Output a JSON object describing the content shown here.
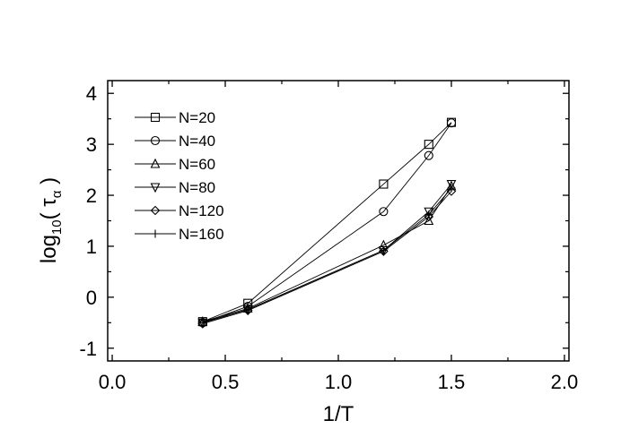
{
  "chart_data": {
    "type": "line",
    "xlabel": "1/T",
    "ylabel": {
      "main": "log",
      "sub": "10",
      "open": "( τ",
      "greek_sub": "α",
      "close": " )"
    },
    "xlim": [
      -0.02,
      2.02
    ],
    "ylim": [
      -1.25,
      4.25
    ],
    "xticks": [
      0.0,
      0.5,
      1.0,
      1.5,
      2.0
    ],
    "xtick_labels": [
      "0.0",
      "0.5",
      "1.0",
      "1.5",
      "2.0"
    ],
    "yticks": [
      -1,
      0,
      1,
      2,
      3,
      4
    ],
    "ytick_labels": [
      "-1",
      "0",
      "1",
      "2",
      "3",
      "4"
    ],
    "grid": false,
    "legend_position": "top-left",
    "series": [
      {
        "name": "N=20",
        "marker": "square",
        "x": [
          0.4,
          0.6,
          1.2,
          1.4,
          1.5
        ],
        "y": [
          -0.48,
          -0.12,
          2.22,
          3.0,
          3.43
        ]
      },
      {
        "name": "N=40",
        "marker": "circle",
        "x": [
          0.4,
          0.6,
          1.2,
          1.4,
          1.5
        ],
        "y": [
          -0.5,
          -0.18,
          1.68,
          2.78,
          3.42
        ]
      },
      {
        "name": "N=60",
        "marker": "triangle-up",
        "x": [
          0.4,
          0.6,
          1.2,
          1.4,
          1.5
        ],
        "y": [
          -0.48,
          -0.22,
          1.02,
          1.5,
          2.18
        ]
      },
      {
        "name": "N=80",
        "marker": "triangle-down",
        "x": [
          0.4,
          0.6,
          1.2,
          1.4,
          1.5
        ],
        "y": [
          -0.5,
          -0.24,
          0.92,
          1.68,
          2.22
        ]
      },
      {
        "name": "N=120",
        "marker": "diamond",
        "x": [
          0.4,
          0.6,
          1.2,
          1.4,
          1.5
        ],
        "y": [
          -0.52,
          -0.26,
          0.9,
          1.58,
          2.08
        ]
      },
      {
        "name": "N=160",
        "marker": "plus",
        "x": [
          0.4,
          0.6,
          1.2,
          1.4,
          1.5
        ],
        "y": [
          -0.5,
          -0.24,
          0.92,
          1.62,
          2.14
        ]
      }
    ]
  }
}
